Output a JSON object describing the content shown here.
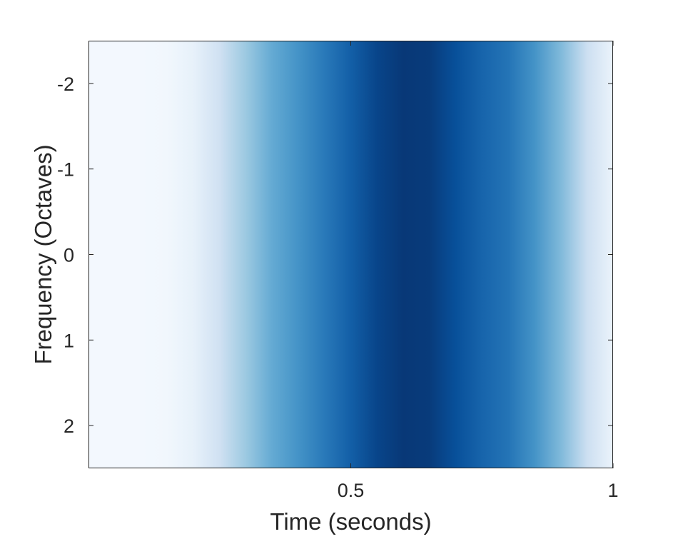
{
  "chart_data": {
    "type": "heatmap",
    "title": "",
    "xlabel": "Time (seconds)",
    "ylabel": "Frequency (Octaves)",
    "xlim": [
      0,
      1
    ],
    "ylim": [
      -2.5,
      2.5
    ],
    "y_reversed": true,
    "x_ticks": [
      0.5,
      1
    ],
    "x_tick_labels": [
      "0.5",
      "1"
    ],
    "y_ticks": [
      -2,
      -1,
      0,
      1,
      2
    ],
    "y_tick_labels": [
      "-2",
      "-1",
      "0",
      "1",
      "2"
    ],
    "colormap": [
      "#f7fbff",
      "#deebf7",
      "#c6dbef",
      "#9ecae1",
      "#6baed6",
      "#4292c6",
      "#2171b5",
      "#08519c",
      "#08306b"
    ],
    "grid": false,
    "colorbar": false,
    "profile": {
      "description_of_values": "intensity (0-1) as a function of time; constant across frequency",
      "time": [
        0.0,
        0.1,
        0.15,
        0.2,
        0.25,
        0.3,
        0.35,
        0.4,
        0.45,
        0.5,
        0.55,
        0.6,
        0.65,
        0.7,
        0.75,
        0.8,
        0.85,
        0.9,
        0.95,
        1.0
      ],
      "intensity": [
        0.02,
        0.02,
        0.03,
        0.08,
        0.2,
        0.38,
        0.52,
        0.62,
        0.72,
        0.82,
        0.92,
        0.97,
        0.96,
        0.88,
        0.8,
        0.74,
        0.62,
        0.45,
        0.22,
        0.06
      ]
    }
  }
}
